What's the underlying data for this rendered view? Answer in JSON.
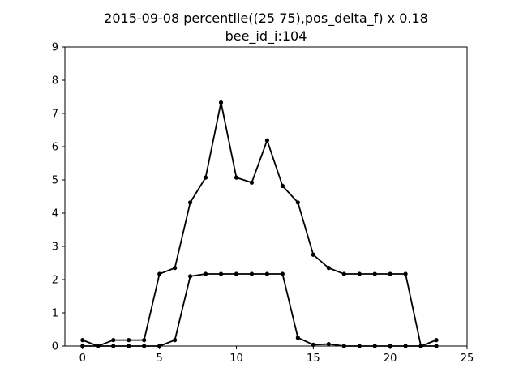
{
  "chart_data": {
    "type": "line",
    "title": "2015-09-08 percentile((25 75),pos_delta_f) x 0.18",
    "subtitle": "bee_id_i:104",
    "xlabel": "",
    "ylabel": "",
    "xlim": [
      -1.15,
      25
    ],
    "ylim": [
      0,
      9
    ],
    "xticks": [
      0,
      5,
      10,
      15,
      20,
      25
    ],
    "yticks": [
      0,
      1,
      2,
      3,
      4,
      5,
      6,
      7,
      8,
      9
    ],
    "grid": false,
    "color": "#000000",
    "x": [
      0,
      1,
      2,
      3,
      4,
      5,
      6,
      7,
      8,
      9,
      10,
      11,
      12,
      13,
      14,
      15,
      16,
      17,
      18,
      19,
      20,
      21,
      22,
      23
    ],
    "series": [
      {
        "values": [
          0.18,
          0.0,
          0.18,
          0.18,
          0.18,
          2.17,
          2.35,
          4.32,
          5.07,
          7.33,
          5.07,
          4.92,
          6.19,
          4.82,
          4.32,
          2.75,
          2.35,
          2.17,
          2.17,
          2.17,
          2.17,
          2.17,
          0.0,
          0.18
        ]
      },
      {
        "values": [
          0.0,
          0.0,
          0.0,
          0.0,
          0.0,
          0.0,
          0.18,
          2.1,
          2.17,
          2.17,
          2.17,
          2.17,
          2.17,
          2.17,
          0.25,
          0.04,
          0.06,
          0.0,
          0.0,
          0.0,
          0.0,
          0.0,
          0.0,
          0.0
        ]
      }
    ]
  }
}
